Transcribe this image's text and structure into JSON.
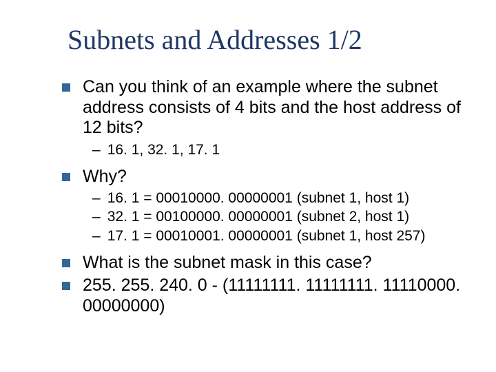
{
  "slide": {
    "title": "Subnets and Addresses 1/2",
    "title_color": "#1f3864",
    "title_fontfamily": "Times New Roman",
    "title_fontsize": 40,
    "background_color": "#ffffff",
    "bullet_color": "#33669a",
    "text_color": "#000000",
    "body_fontsize": 25,
    "sub_fontsize": 21,
    "items": [
      {
        "level": 1,
        "text": "Can you think of an example where the subnet address consists of 4 bits and the host address of 12 bits?"
      },
      {
        "level": 2,
        "text": "16. 1, 32. 1, 17. 1"
      },
      {
        "level": 1,
        "text": "Why?"
      },
      {
        "level": 2,
        "text": "16. 1 = 00010000. 00000001 (subnet 1, host 1)"
      },
      {
        "level": 2,
        "text": "32. 1 = 00100000. 00000001 (subnet 2, host 1)"
      },
      {
        "level": 2,
        "text": "17. 1 = 00010001. 00000001 (subnet 1, host 257)"
      },
      {
        "level": 1,
        "text": "What is the subnet mask in this case?"
      },
      {
        "level": 1,
        "text": "255. 255. 240. 0 - (11111111. 11111111. 11110000. 00000000)"
      }
    ]
  }
}
